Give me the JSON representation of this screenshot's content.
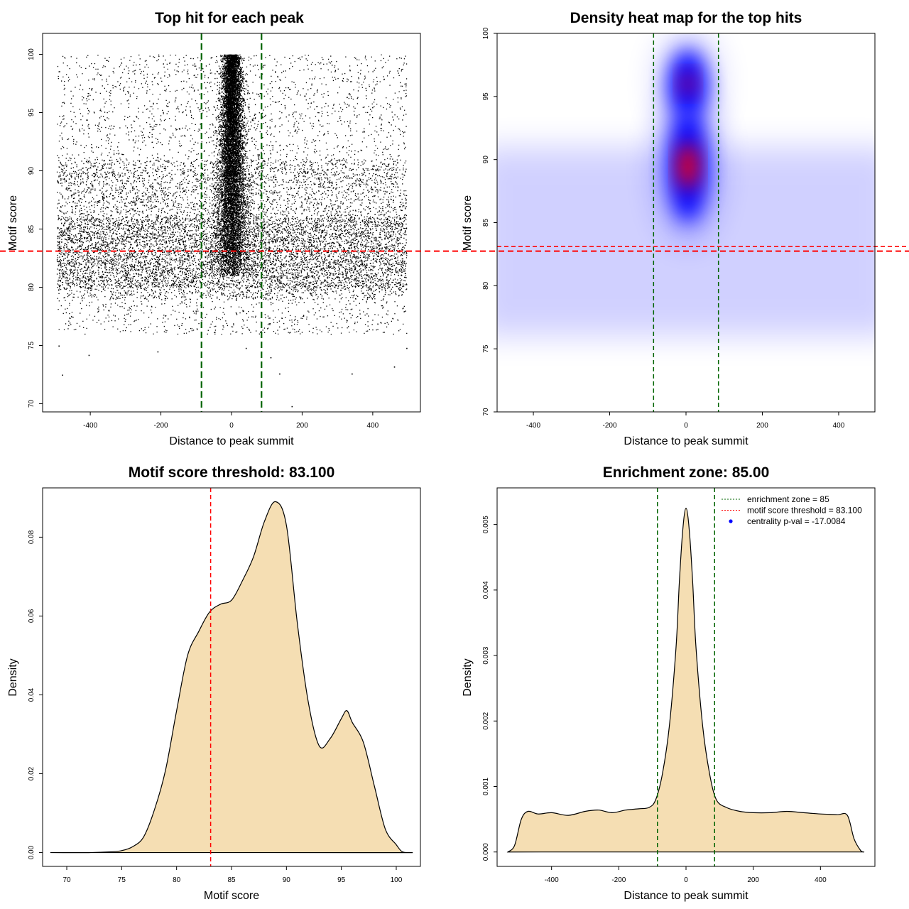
{
  "chart_data": [
    {
      "id": "scatter",
      "type": "scatter",
      "title": "Top hit for each peak",
      "xlabel": "Distance to peak summit",
      "ylabel": "Motif score",
      "xlim": [
        -535,
        535
      ],
      "ylim": [
        69.3,
        101.8
      ],
      "xticks": [
        -400,
        -200,
        0,
        200,
        400
      ],
      "yticks": [
        70,
        75,
        80,
        85,
        90,
        95,
        100
      ],
      "hlines": [
        {
          "y": 83.1,
          "color": "#ff0000"
        }
      ],
      "vlines": [
        {
          "x": -85,
          "color": "#006400"
        },
        {
          "x": 85,
          "color": "#006400"
        }
      ],
      "point_color": "#000000",
      "distribution": {
        "background": {
          "x_range": [
            -495,
            495
          ],
          "score_bands": [
            [
              76,
              100
            ],
            [
              79,
              91
            ],
            [
              80,
              86
            ]
          ]
        },
        "central": {
          "x_center": 0,
          "x_spread": 40,
          "score_range": [
            81,
            100
          ]
        }
      },
      "sparse_low_points": [
        {
          "x": -480,
          "y": 72.5
        },
        {
          "x": -490,
          "y": 75
        },
        {
          "x": -405,
          "y": 74.2
        },
        {
          "x": -210,
          "y": 74.5
        },
        {
          "x": 135,
          "y": 72.6
        },
        {
          "x": 170,
          "y": 69.8
        },
        {
          "x": 340,
          "y": 72.6
        },
        {
          "x": 460,
          "y": 73.2
        },
        {
          "x": 495,
          "y": 74.8
        },
        {
          "x": 40,
          "y": 74.8
        },
        {
          "x": 110,
          "y": 74
        }
      ]
    },
    {
      "id": "heatmap",
      "type": "heatmap",
      "title": "Density heat map for the top hits",
      "xlabel": "Distance to peak summit",
      "ylabel": "Motif score",
      "xlim": [
        -495,
        495
      ],
      "ylim": [
        70,
        100
      ],
      "xticks": [
        -400,
        -200,
        0,
        200,
        400
      ],
      "yticks": [
        70,
        75,
        80,
        85,
        90,
        95,
        100
      ],
      "colors": [
        "#ffffff",
        "#0000ff",
        "#ff0000"
      ],
      "hlines": [
        {
          "y": 83.1,
          "color": "#ff0000"
        }
      ],
      "vlines": [
        {
          "x": -85,
          "color": "#006400"
        },
        {
          "x": 85,
          "color": "#006400"
        }
      ],
      "hotspots": [
        {
          "x": 5,
          "y": 89.5,
          "level": 1.0
        },
        {
          "x": 5,
          "y": 96,
          "level": 0.7
        }
      ],
      "background_band": {
        "y_range": [
          76,
          91
        ],
        "level": 0.18
      }
    },
    {
      "id": "score-density",
      "type": "area",
      "title": "Motif score threshold: 83.100",
      "xlabel": "Motif score",
      "ylabel": "Density",
      "xlim": [
        67.8,
        102.2
      ],
      "ylim": [
        -0.0035,
        0.0925
      ],
      "xticks": [
        70,
        75,
        80,
        85,
        90,
        95,
        100
      ],
      "yticks": [
        0.0,
        0.02,
        0.04,
        0.06,
        0.08
      ],
      "ytick_labels": [
        "0.00",
        "0.02",
        "0.04",
        "0.06",
        "0.08"
      ],
      "fill": "#f5deb3",
      "vlines": [
        {
          "x": 83.1,
          "color": "#ff0000"
        }
      ],
      "x": [
        68.5,
        70,
        72,
        74,
        75,
        76,
        77,
        78,
        79,
        80,
        81,
        82,
        83,
        84,
        85,
        86,
        87,
        88,
        89,
        90,
        91,
        92,
        93,
        94,
        95,
        95.5,
        96,
        97,
        98,
        99,
        100,
        100.5,
        101,
        101.5
      ],
      "y": [
        0.0,
        0.0,
        0.0,
        0.0002,
        0.0005,
        0.0015,
        0.004,
        0.011,
        0.021,
        0.036,
        0.05,
        0.056,
        0.061,
        0.063,
        0.064,
        0.069,
        0.075,
        0.084,
        0.089,
        0.083,
        0.058,
        0.038,
        0.027,
        0.029,
        0.034,
        0.036,
        0.033,
        0.028,
        0.017,
        0.006,
        0.002,
        0.0003,
        0.0,
        0.0
      ]
    },
    {
      "id": "distance-density",
      "type": "area",
      "title": "Enrichment zone: 85.00",
      "xlabel": "Distance to peak summit",
      "ylabel": "Density",
      "xlim": [
        -562,
        562
      ],
      "ylim": [
        -0.00022,
        0.00556
      ],
      "xticks": [
        -400,
        -200,
        0,
        200,
        400
      ],
      "yticks": [
        0.0,
        0.001,
        0.002,
        0.003,
        0.004,
        0.005
      ],
      "ytick_labels": [
        "0.000",
        "0.001",
        "0.002",
        "0.003",
        "0.004",
        "0.005"
      ],
      "fill": "#f5deb3",
      "vlines": [
        {
          "x": -85,
          "color": "#006400"
        },
        {
          "x": 85,
          "color": "#006400"
        }
      ],
      "x": [
        -530,
        -510,
        -490,
        -470,
        -440,
        -400,
        -350,
        -300,
        -260,
        -220,
        -180,
        -140,
        -110,
        -90,
        -70,
        -50,
        -30,
        -20,
        -10,
        0,
        10,
        20,
        30,
        50,
        70,
        90,
        120,
        160,
        200,
        250,
        300,
        350,
        400,
        450,
        480,
        500,
        520,
        530
      ],
      "y": [
        0.0,
        0.0001,
        0.0005,
        0.00062,
        0.00058,
        0.0006,
        0.00056,
        0.00062,
        0.00064,
        0.0006,
        0.00064,
        0.00066,
        0.00068,
        0.0008,
        0.0012,
        0.0019,
        0.0031,
        0.0041,
        0.0049,
        0.00525,
        0.0049,
        0.0041,
        0.0031,
        0.0019,
        0.0012,
        0.0008,
        0.00068,
        0.00062,
        0.0006,
        0.0006,
        0.00062,
        0.0006,
        0.00058,
        0.00057,
        0.00056,
        0.0002,
        2e-05,
        0.0
      ],
      "legend": {
        "position": "top-right",
        "items": [
          {
            "label": "enrichment zone = 85",
            "color": "#006400",
            "symbol": "dotted-line"
          },
          {
            "label": "motif score threshold = 83.100",
            "color": "#ff0000",
            "symbol": "dotted-line"
          },
          {
            "label": "centrality p-val = -17.0084",
            "color": "#0000ff",
            "symbol": "point"
          }
        ]
      }
    }
  ]
}
